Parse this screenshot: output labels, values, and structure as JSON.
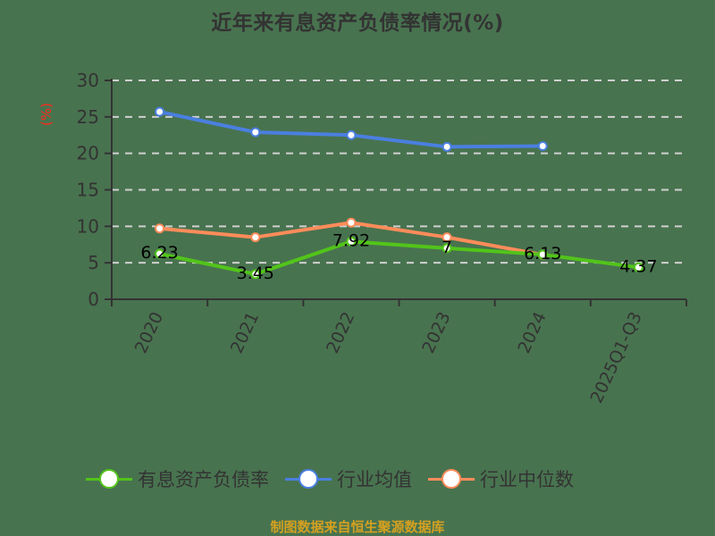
{
  "title": "近年来有息资产负债率情况(%)",
  "unit_label": "(%)",
  "source": "制图数据来自恒生聚源数据库",
  "legend": [
    {
      "label": "有息资产负债率",
      "color": "#52c41a"
    },
    {
      "label": "行业均值",
      "color": "#4a7fe0"
    },
    {
      "label": "行业中位数",
      "color": "#ff8c5a"
    }
  ],
  "chart_data": {
    "type": "line",
    "title": "近年来有息资产负债率情况(%)",
    "xlabel": "",
    "ylabel": "(%)",
    "categories": [
      "2020",
      "2021",
      "2022",
      "2023",
      "2024",
      "2025Q1-Q3"
    ],
    "ylim": [
      0,
      30
    ],
    "yticks": [
      0,
      5,
      10,
      15,
      20,
      25,
      30
    ],
    "grid": true,
    "grid_style": "dashed",
    "legend_position": "bottom",
    "series": [
      {
        "name": "有息资产负债率",
        "color": "#52c41a",
        "values": [
          6.23,
          3.45,
          7.92,
          7,
          6.13,
          4.37
        ],
        "labels": [
          "6.23",
          "3.45",
          "7.92",
          "7",
          "6.13",
          "4.37"
        ]
      },
      {
        "name": "行业均值",
        "color": "#4a7fe0",
        "values": [
          25.7,
          22.9,
          22.5,
          20.9,
          21.0,
          null
        ]
      },
      {
        "name": "行业中位数",
        "color": "#ff8c5a",
        "values": [
          9.7,
          8.5,
          10.5,
          8.5,
          6.1,
          null
        ]
      }
    ]
  }
}
